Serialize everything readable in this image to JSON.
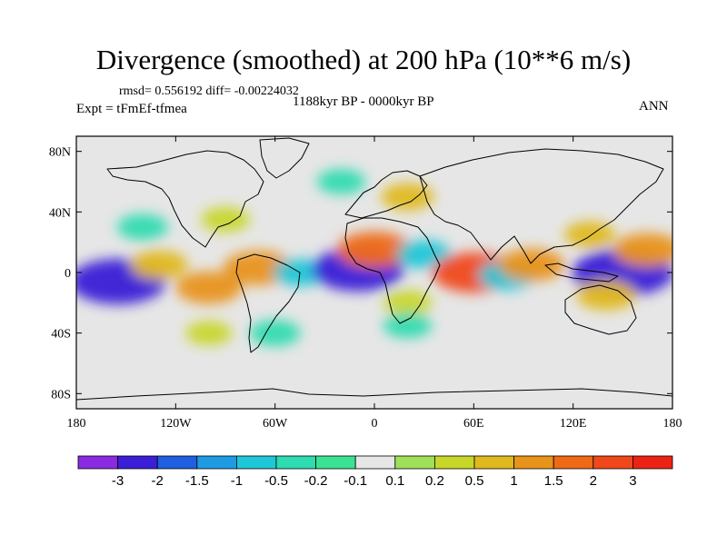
{
  "figure": {
    "title": "Divergence (smoothed) at 200 hPa (10**6 m/s)",
    "stats_text": "rmsd= 0.556192 diff= -0.00224032",
    "expt_text": "Expt = tFmEf-tfmea",
    "period_text": "1188kyr BP - 0000kyr BP",
    "season_text": "ANN"
  },
  "chart_data": {
    "type": "heatmap",
    "title": "Divergence (smoothed) at 200 hPa (10**6 m/s)",
    "projection": "cylindrical-equidistant",
    "xlim": [
      -180,
      180
    ],
    "ylim": [
      -90,
      90
    ],
    "x_ticks": [
      {
        "value": -180,
        "label": "180"
      },
      {
        "value": -120,
        "label": "120W"
      },
      {
        "value": -60,
        "label": "60W"
      },
      {
        "value": 0,
        "label": "0"
      },
      {
        "value": 60,
        "label": "60E"
      },
      {
        "value": 120,
        "label": "120E"
      },
      {
        "value": 180,
        "label": "180"
      }
    ],
    "y_ticks": [
      {
        "value": 80,
        "label": "80N"
      },
      {
        "value": 40,
        "label": "40N"
      },
      {
        "value": 0,
        "label": "0"
      },
      {
        "value": -40,
        "label": "40S"
      },
      {
        "value": -80,
        "label": "80S"
      }
    ],
    "colorbar": {
      "colors": [
        "#8a2be2",
        "#3a1fd6",
        "#1f5fe0",
        "#1e9be3",
        "#1ec7d8",
        "#2fdbb0",
        "#39e393",
        "#e6e6e6",
        "#9fe05a",
        "#c8d62a",
        "#e0b81f",
        "#e8941a",
        "#ee6a17",
        "#f0481a",
        "#ec2314"
      ],
      "labels": [
        "-3",
        "-2",
        "-1.5",
        "-1",
        "-0.5",
        "-0.2",
        "-0.1",
        "0.1",
        "0.2",
        "0.5",
        "1",
        "1.5",
        "2",
        "3"
      ],
      "levels": [
        -3,
        -2,
        -1.5,
        -1,
        -0.5,
        -0.2,
        -0.1,
        0.1,
        0.2,
        0.5,
        1,
        1.5,
        2,
        3
      ]
    },
    "anomaly_features": [
      {
        "lon": -155,
        "lat": -6,
        "value": -2.6
      },
      {
        "lon": -130,
        "lat": 5,
        "value": 0.8
      },
      {
        "lon": -100,
        "lat": -10,
        "value": 1.2
      },
      {
        "lon": -70,
        "lat": 3,
        "value": 1.4
      },
      {
        "lon": -45,
        "lat": 0,
        "value": -0.6
      },
      {
        "lon": -10,
        "lat": 2,
        "value": -2.4
      },
      {
        "lon": 0,
        "lat": 15,
        "value": 1.6
      },
      {
        "lon": 30,
        "lat": 12,
        "value": -0.7
      },
      {
        "lon": 60,
        "lat": 0,
        "value": 2.0
      },
      {
        "lon": 80,
        "lat": -2,
        "value": -0.8
      },
      {
        "lon": 95,
        "lat": 5,
        "value": 1.2
      },
      {
        "lon": 130,
        "lat": 25,
        "value": 0.5
      },
      {
        "lon": 150,
        "lat": 0,
        "value": -2.8
      },
      {
        "lon": 165,
        "lat": 15,
        "value": 1.3
      },
      {
        "lon": 140,
        "lat": -15,
        "value": 0.9
      },
      {
        "lon": -140,
        "lat": 30,
        "value": -0.5
      },
      {
        "lon": -90,
        "lat": 35,
        "value": 0.4
      },
      {
        "lon": -20,
        "lat": 60,
        "value": -0.4
      },
      {
        "lon": 20,
        "lat": 50,
        "value": 0.6
      },
      {
        "lon": 20,
        "lat": -20,
        "value": 0.4
      },
      {
        "lon": -60,
        "lat": -40,
        "value": -0.5
      },
      {
        "lon": 20,
        "lat": -35,
        "value": -0.4
      },
      {
        "lon": -100,
        "lat": -40,
        "value": 0.3
      }
    ]
  }
}
